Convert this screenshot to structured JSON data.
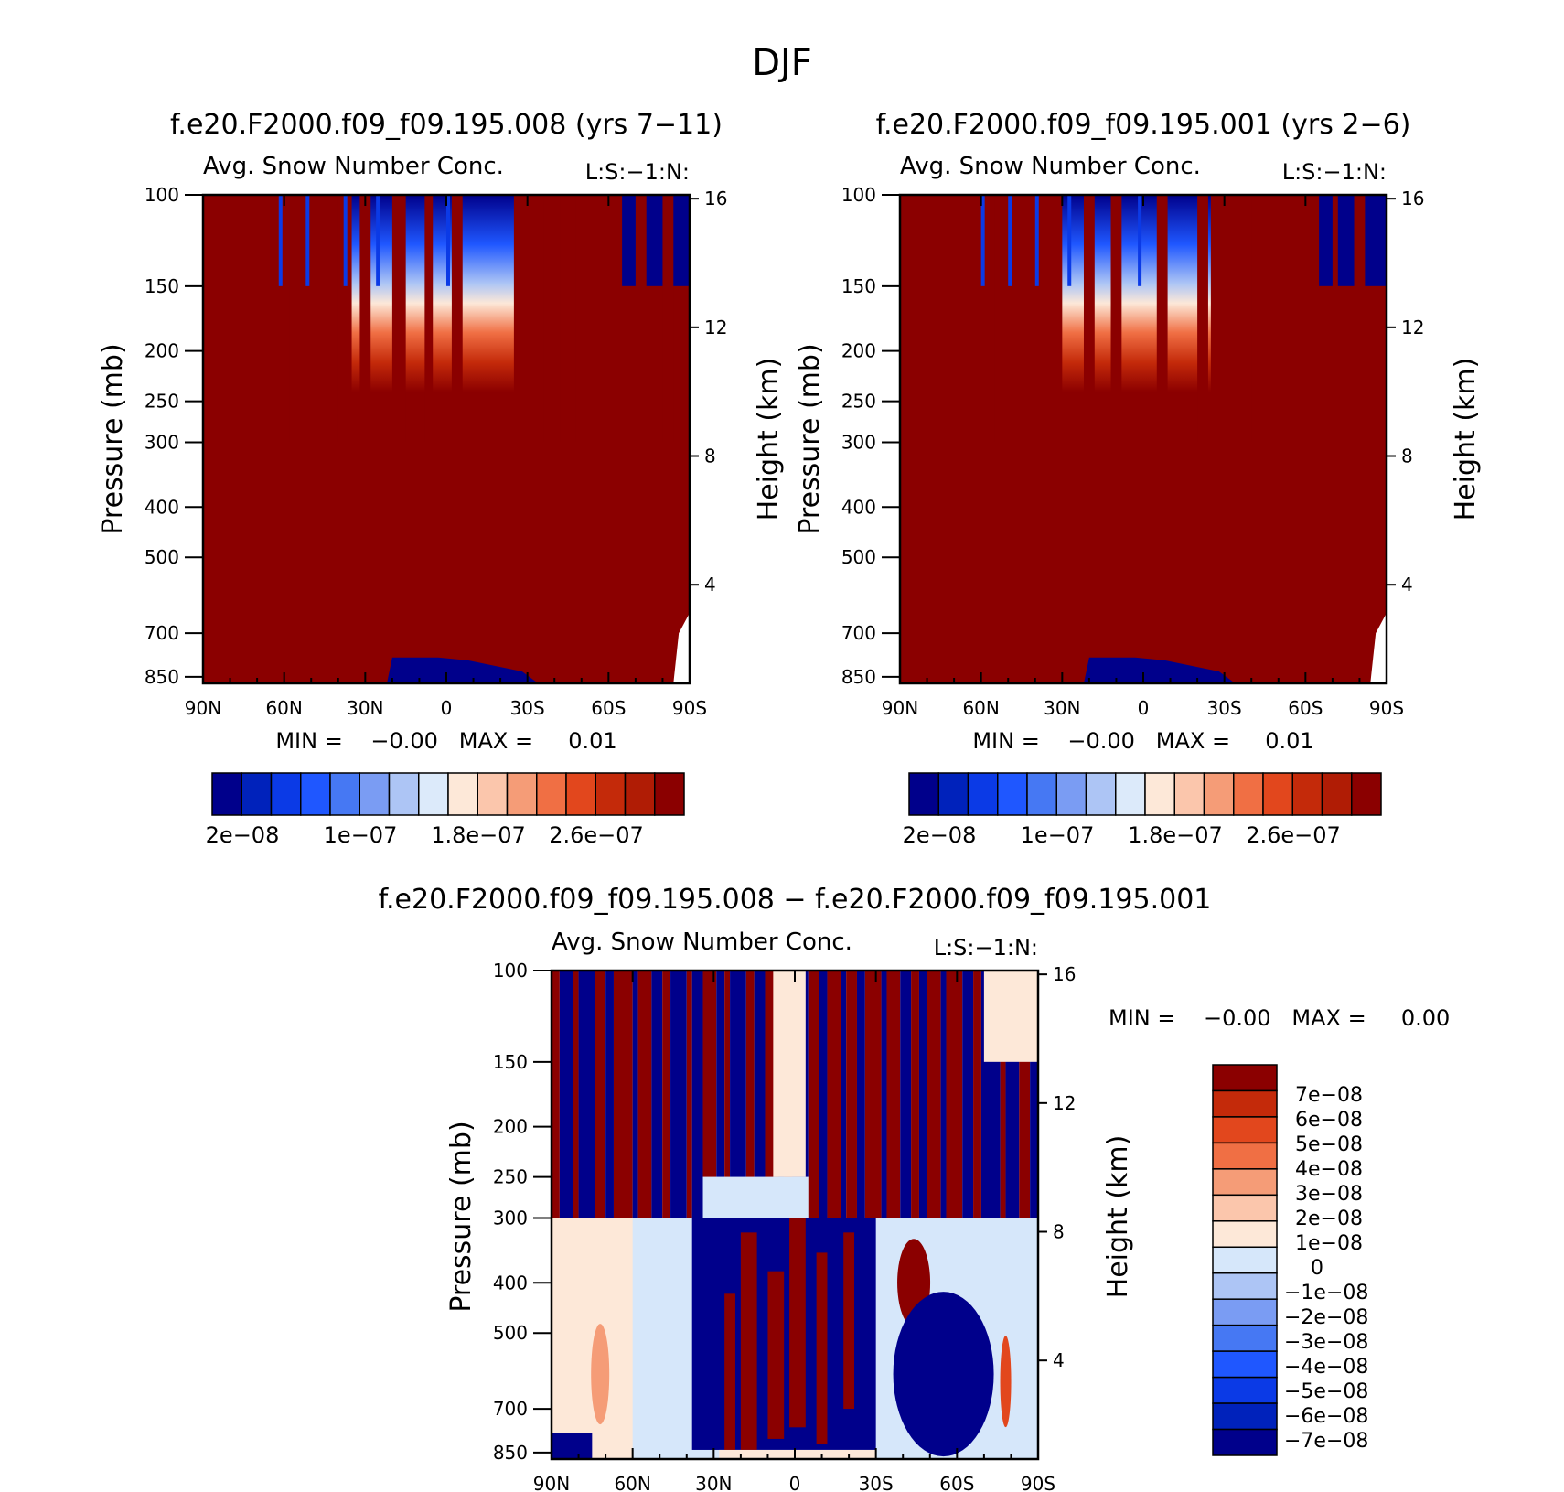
{
  "figure_title": "DJF",
  "colors": {
    "dark_red": "#8b0000",
    "dark_blue": "#00008b",
    "panel_palette": [
      "#00008b",
      "#0022bb",
      "#0b3ae6",
      "#1f57ff",
      "#4678f3",
      "#7a9cf3",
      "#adc5f5",
      "#dceafa",
      "#fde8d8",
      "#fbc6ac",
      "#f59c77",
      "#f06f44",
      "#e2471d",
      "#c42a0a",
      "#b01c05",
      "#8b0000"
    ],
    "diff_palette": [
      "#00008b",
      "#0022bb",
      "#0b3ae6",
      "#1f57ff",
      "#4678f3",
      "#7a9cf3",
      "#adc5f5",
      "#d6e7fa",
      "#fde8d8",
      "#fbc6ac",
      "#f59c77",
      "#f06f44",
      "#e2471d",
      "#c42a0a",
      "#8b0000"
    ]
  },
  "panels": [
    {
      "title": "f.e20.F2000.f09_f09.195.008 (yrs 7−11)",
      "subtitle": "Avg. Snow Number Conc.",
      "level_label": "L:S:−1:N:",
      "ylabel": "Pressure (mb)",
      "ylabel_right": "Height (km)",
      "minmax": "MIN =    −0.00   MAX =     0.01",
      "colorbar_labels": [
        "2e−08",
        "1e−07",
        "1.8e−07",
        "2.6e−07"
      ]
    },
    {
      "title": "f.e20.F2000.f09_f09.195.001 (yrs 2−6)",
      "subtitle": "Avg. Snow Number Conc.",
      "level_label": "L:S:−1:N:",
      "ylabel": "Pressure (mb)",
      "ylabel_right": "Height (km)",
      "minmax": "MIN =    −0.00   MAX =     0.01",
      "colorbar_labels": [
        "2e−08",
        "1e−07",
        "1.8e−07",
        "2.6e−07"
      ]
    },
    {
      "title": "f.e20.F2000.f09_f09.195.008 − f.e20.F2000.f09_f09.195.001",
      "subtitle": "Avg. Snow Number Conc.",
      "level_label": "L:S:−1:N:",
      "ylabel": "Pressure (mb)",
      "ylabel_right": "Height (km)",
      "minmax": "MIN =    −0.00   MAX =     0.00",
      "colorbar_labels": [
        "7e−08",
        "6e−08",
        "5e−08",
        "4e−08",
        "3e−08",
        "2e−08",
        "1e−08",
        "0",
        "−1e−08",
        "−2e−08",
        "−3e−08",
        "−4e−08",
        "−5e−08",
        "−6e−08",
        "−7e−08"
      ]
    }
  ],
  "chart_data": [
    {
      "type": "heatmap",
      "title": "f.e20.F2000.f09_f09.195.008 (yrs 7−11)",
      "variable": "Avg. Snow Number Conc.",
      "xlabel": "",
      "ylabel": "Pressure (mb)",
      "y2label": "Height (km)",
      "x_ticks": [
        "90N",
        "60N",
        "30N",
        "0",
        "30S",
        "60S",
        "90S"
      ],
      "x_tick_values": [
        90,
        60,
        30,
        0,
        -30,
        -60,
        -90
      ],
      "y_ticks": [
        100,
        150,
        200,
        250,
        300,
        400,
        500,
        700,
        850
      ],
      "y2_ticks": [
        4,
        8,
        12,
        16
      ],
      "xlim": [
        90,
        -90
      ],
      "ylim": [
        875,
        100
      ],
      "min": -0.0,
      "max": 0.01,
      "colorbar_labels": [
        "2e-08",
        "1e-07",
        "1.8e-07",
        "2.6e-07"
      ]
    },
    {
      "type": "heatmap",
      "title": "f.e20.F2000.f09_f09.195.001 (yrs 2−6)",
      "variable": "Avg. Snow Number Conc.",
      "xlabel": "",
      "ylabel": "Pressure (mb)",
      "y2label": "Height (km)",
      "x_ticks": [
        "90N",
        "60N",
        "30N",
        "0",
        "30S",
        "60S",
        "90S"
      ],
      "x_tick_values": [
        90,
        60,
        30,
        0,
        -30,
        -60,
        -90
      ],
      "y_ticks": [
        100,
        150,
        200,
        250,
        300,
        400,
        500,
        700,
        850
      ],
      "y2_ticks": [
        4,
        8,
        12,
        16
      ],
      "xlim": [
        90,
        -90
      ],
      "ylim": [
        875,
        100
      ],
      "min": -0.0,
      "max": 0.01,
      "colorbar_labels": [
        "2e-08",
        "1e-07",
        "1.8e-07",
        "2.6e-07"
      ]
    },
    {
      "type": "heatmap",
      "title": "f.e20.F2000.f09_f09.195.008 − f.e20.F2000.f09_f09.195.001",
      "variable": "Avg. Snow Number Conc.",
      "xlabel": "",
      "ylabel": "Pressure (mb)",
      "y2label": "Height (km)",
      "x_ticks": [
        "90N",
        "60N",
        "30N",
        "0",
        "30S",
        "60S",
        "90S"
      ],
      "x_tick_values": [
        90,
        60,
        30,
        0,
        -30,
        -60,
        -90
      ],
      "y_ticks": [
        100,
        150,
        200,
        250,
        300,
        400,
        500,
        700,
        850
      ],
      "y2_ticks": [
        4,
        8,
        12,
        16
      ],
      "xlim": [
        90,
        -90
      ],
      "ylim": [
        875,
        100
      ],
      "min": -0.0,
      "max": 0.0,
      "colorbar_labels": [
        "7e-08",
        "6e-08",
        "5e-08",
        "4e-08",
        "3e-08",
        "2e-08",
        "1e-08",
        "0",
        "-1e-08",
        "-2e-08",
        "-3e-08",
        "-4e-08",
        "-5e-08",
        "-6e-08",
        "-7e-08"
      ]
    }
  ]
}
